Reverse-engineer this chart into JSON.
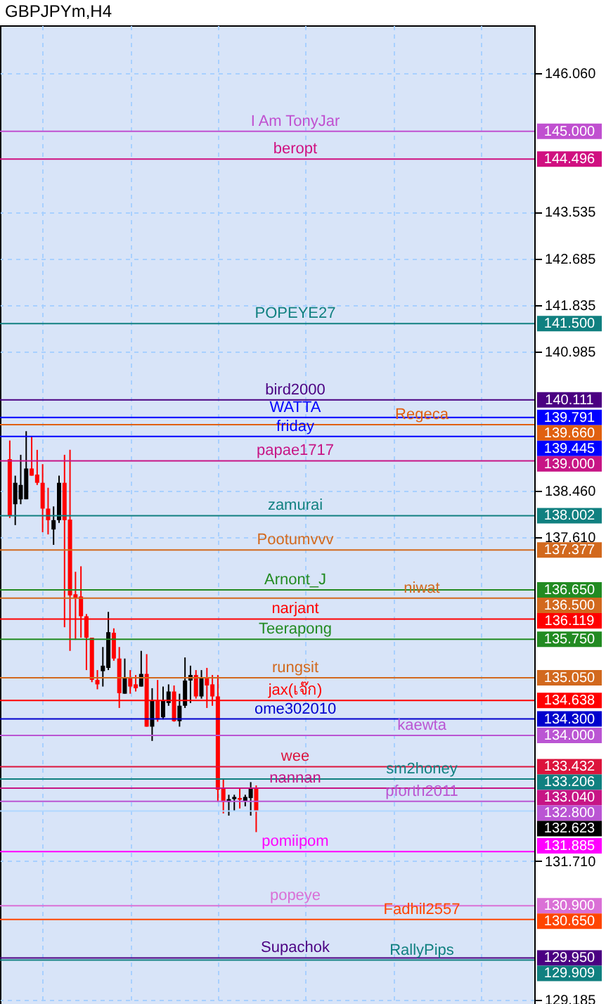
{
  "chart_data": {
    "type": "candlestick",
    "title": "GBPJPYm,H4",
    "categories": [
      null,
      null,
      null,
      null,
      null,
      null,
      null,
      null,
      null,
      null,
      null,
      null,
      null,
      null,
      null,
      null,
      null,
      null,
      null,
      null,
      null,
      null,
      null,
      null,
      null,
      null,
      null,
      null,
      null,
      null,
      null,
      null,
      null,
      null,
      null,
      null,
      null,
      null,
      null,
      null,
      null,
      null,
      null,
      null,
      null,
      null,
      null,
      null,
      null,
      null,
      null,
      null,
      null,
      null,
      null,
      null,
      null,
      null,
      null,
      null,
      null,
      null,
      null,
      null,
      null,
      null,
      null,
      null,
      null,
      null,
      null,
      null,
      null,
      null,
      null,
      null,
      null,
      null,
      null,
      null,
      null,
      null,
      null,
      null,
      null,
      null,
      null,
      null,
      null,
      null,
      null,
      null,
      null,
      null,
      null
    ],
    "ohlc": [
      [
        139.03,
        139.37,
        137.96,
        138.0
      ],
      [
        138.21,
        138.73,
        137.83,
        138.6
      ],
      [
        138.3,
        139.11,
        138.21,
        138.56
      ],
      [
        138.3,
        139.54,
        138.3,
        138.86
      ],
      [
        138.86,
        139.45,
        138.73,
        138.73
      ],
      [
        138.75,
        139.2,
        138.56,
        138.6
      ],
      [
        138.6,
        138.94,
        137.7,
        138.13
      ],
      [
        138.13,
        138.51,
        137.66,
        137.92
      ],
      [
        137.75,
        138.17,
        137.47,
        137.92
      ],
      [
        137.92,
        138.73,
        137.87,
        138.6
      ],
      [
        138.6,
        139.11,
        135.97,
        137.92
      ],
      [
        137.93,
        139.2,
        135.54,
        136.55
      ],
      [
        136.57,
        136.98,
        135.74,
        136.51
      ],
      [
        136.53,
        137.08,
        135.78,
        136.17
      ],
      [
        136.17,
        136.21,
        135.19,
        135.78
      ],
      [
        135.78,
        135.78,
        134.97,
        135.01
      ],
      [
        135.01,
        135.19,
        134.84,
        134.93
      ],
      [
        135.17,
        135.61,
        134.89,
        135.27
      ],
      [
        135.23,
        136.25,
        135.19,
        135.88
      ],
      [
        135.87,
        135.95,
        135.36,
        135.4
      ],
      [
        135.4,
        135.61,
        134.5,
        134.77
      ],
      [
        134.76,
        135.4,
        134.76,
        135.06
      ],
      [
        135.06,
        135.19,
        134.76,
        134.89
      ],
      [
        134.93,
        135.1,
        134.8,
        134.86
      ],
      [
        134.89,
        135.54,
        134.89,
        135.12
      ],
      [
        135.12,
        135.48,
        134.16,
        134.16
      ],
      [
        134.16,
        134.86,
        133.9,
        134.63
      ],
      [
        134.63,
        135.01,
        134.25,
        134.29
      ],
      [
        134.33,
        134.89,
        134.29,
        134.63
      ],
      [
        134.59,
        134.93,
        134.54,
        134.8
      ],
      [
        134.8,
        134.91,
        134.25,
        134.26
      ],
      [
        134.26,
        134.76,
        134.16,
        134.54
      ],
      [
        134.54,
        135.42,
        134.5,
        135.0
      ],
      [
        135.0,
        135.27,
        134.59,
        135.1
      ],
      [
        135.1,
        135.19,
        134.67,
        134.71
      ],
      [
        134.71,
        135.19,
        134.67,
        135.06
      ],
      [
        135.06,
        135.23,
        134.5,
        134.91
      ],
      [
        134.93,
        135.1,
        134.54,
        134.71
      ],
      [
        134.71,
        135.1,
        132.79,
        133.01
      ],
      [
        133.05,
        133.22,
        132.58,
        132.79
      ],
      [
        132.79,
        132.92,
        132.54,
        132.84
      ],
      [
        132.84,
        132.92,
        132.62,
        132.88
      ],
      [
        132.86,
        133.05,
        132.67,
        132.83
      ],
      [
        132.81,
        132.92,
        132.71,
        132.88
      ],
      [
        132.86,
        133.15,
        132.54,
        133.05
      ],
      [
        133.05,
        133.09,
        132.24,
        132.62
      ],
      null,
      null,
      null,
      null,
      null,
      null,
      null,
      null,
      null,
      null,
      null,
      null,
      null,
      null,
      null,
      null,
      null,
      null,
      null,
      null,
      null,
      null,
      null,
      null,
      null,
      null,
      null,
      null,
      null,
      null,
      null,
      null,
      null,
      null,
      null,
      null,
      null,
      null,
      null,
      null,
      null,
      null,
      null,
      null,
      null,
      null,
      null,
      null,
      null
    ],
    "colors": [
      "#ff0000",
      "#000000",
      "#000000",
      "#000000",
      "#ff0000",
      "#ff0000",
      "#ff0000",
      "#ff0000",
      "#000000",
      "#000000",
      "#ff0000",
      "#ff0000",
      "#ff0000",
      "#ff0000",
      "#ff0000",
      "#ff0000",
      "#ff0000",
      "#000000",
      "#000000",
      "#ff0000",
      "#ff0000",
      "#000000",
      "#ff0000",
      "#ff0000",
      "#000000",
      "#ff0000",
      "#000000",
      "#ff0000",
      "#000000",
      "#000000",
      "#ff0000",
      "#000000",
      "#000000",
      "#000000",
      "#ff0000",
      "#000000",
      "#ff0000",
      "#ff0000",
      "#ff0000",
      "#ff0000",
      "#000000",
      "#000000",
      "#ff0000",
      "#000000",
      "#000000",
      "#ff0000",
      null,
      null,
      null,
      null,
      null,
      null,
      null,
      null,
      null,
      null,
      null,
      null,
      null,
      null,
      null,
      null,
      null,
      null,
      null,
      null,
      null,
      null,
      null,
      null,
      null,
      null,
      null,
      null,
      null,
      null,
      null,
      null,
      null,
      null,
      null,
      null,
      null,
      null,
      null,
      null,
      null,
      null,
      null,
      null,
      null,
      null,
      null,
      null,
      null
    ],
    "ylim": [
      129.11,
      146.93
    ],
    "yticks": [
      {
        "value": 146.06,
        "label": "146.060"
      },
      {
        "value": 143.535,
        "label": "143.535"
      },
      {
        "value": 142.685,
        "label": "142.685"
      },
      {
        "value": 141.835,
        "label": "141.835"
      },
      {
        "value": 140.985,
        "label": "140.985"
      },
      {
        "value": 138.46,
        "label": "138.460"
      },
      {
        "value": 137.61,
        "label": "137.610"
      },
      {
        "value": 131.71,
        "label": "131.710"
      },
      {
        "value": 129.185,
        "label": "129.185"
      }
    ],
    "annotations": [
      "145.000",
      "144.496",
      "141.500",
      "140.111",
      "139.791",
      "139.660",
      "139.445",
      "139.000",
      "138.002",
      "137.377",
      "136.650",
      "136.500",
      "136.119",
      "135.750",
      "135.050",
      "134.638",
      "134.300",
      "134.000",
      "133.432",
      "133.206",
      "133.040",
      "132.800",
      "132.623",
      "131.885",
      "130.900",
      "130.650",
      "129.950",
      "129.909"
    ],
    "grid": true,
    "tick_labels": "y",
    "ref_lines": [
      {
        "axis": "y",
        "value": 145.0,
        "label": "I Am TonyJar",
        "color": "#c050d0"
      },
      {
        "axis": "y",
        "value": 144.496,
        "label": "beropt",
        "color": "#d01080"
      },
      {
        "axis": "y",
        "value": 141.5,
        "label": "POPEYE27",
        "color": "#108080"
      },
      {
        "axis": "y",
        "value": 140.111,
        "label": "bird2000",
        "color": "#4b0082"
      },
      {
        "axis": "y",
        "value": 139.791,
        "label": "WATTA",
        "color": "#0000ff"
      },
      {
        "axis": "y",
        "value": 139.66,
        "label": "Regeca",
        "color": "#e06010"
      },
      {
        "axis": "y",
        "value": 139.445,
        "label": "friday",
        "color": "#0000ff"
      },
      {
        "axis": "y",
        "value": 139.0,
        "label": "papae1717",
        "color": "#c71585"
      },
      {
        "axis": "y",
        "value": 138.002,
        "label": "zamurai",
        "color": "#108080"
      },
      {
        "axis": "y",
        "value": 137.377,
        "label": "Pootumvvv",
        "color": "#d2691e"
      },
      {
        "axis": "y",
        "value": 136.65,
        "label": "Arnont_J",
        "color": "#228b22"
      },
      {
        "axis": "y",
        "value": 136.5,
        "label": "niwat",
        "color": "#d2691e"
      },
      {
        "axis": "y",
        "value": 136.119,
        "label": "narjant",
        "color": "#ff0000"
      },
      {
        "axis": "y",
        "value": 135.75,
        "label": "Teerapong",
        "color": "#228b22"
      },
      {
        "axis": "y",
        "value": 135.05,
        "label": "rungsit",
        "color": "#d2691e"
      },
      {
        "axis": "y",
        "value": 134.638,
        "label": "jax(เจ๊ก)",
        "color": "#ff0000"
      },
      {
        "axis": "y",
        "value": 134.3,
        "label": "ome302010",
        "color": "#0000cd"
      },
      {
        "axis": "y",
        "value": 134.0,
        "label": "kaewta",
        "color": "#ba55d3"
      },
      {
        "axis": "y",
        "value": 133.432,
        "label": "wee",
        "color": "#dc143c"
      },
      {
        "axis": "y",
        "value": 133.206,
        "label": "sm2honey",
        "color": "#108080"
      },
      {
        "axis": "y",
        "value": 133.04,
        "label": "nannan",
        "color": "#c71585"
      },
      {
        "axis": "y",
        "value": 132.8,
        "label": "pforth2011",
        "color": "#ba55d3"
      },
      {
        "axis": "y",
        "value": 132.623,
        "label": null,
        "color": "#b0d8ff"
      },
      {
        "axis": "y",
        "value": 131.885,
        "label": "pomiipom",
        "color": "#ff00ff"
      },
      {
        "axis": "y",
        "value": 130.9,
        "label": "popeye",
        "color": "#da70d6"
      },
      {
        "axis": "y",
        "value": 130.65,
        "label": "Fadhil2557",
        "color": "#ff4500"
      },
      {
        "axis": "y",
        "value": 129.95,
        "label": "Supachok",
        "color": "#4b0082"
      },
      {
        "axis": "y",
        "value": 129.909,
        "label": "RallyPips",
        "color": "#108080"
      }
    ]
  }
}
